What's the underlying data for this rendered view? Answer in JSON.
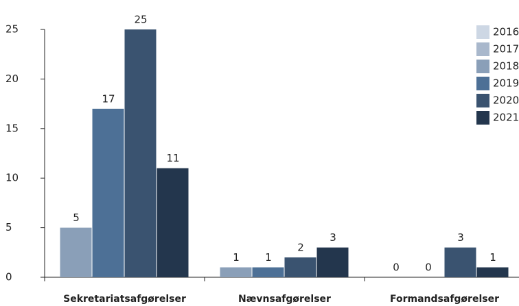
{
  "chart_data": {
    "type": "bar",
    "categories": [
      "Sekretariatsafgørelser",
      "Nævnsafgørelser",
      "Formandsafgørelser"
    ],
    "series": [
      {
        "name": "2016",
        "color": "#cdd7e4",
        "values": [
          null,
          null,
          null
        ]
      },
      {
        "name": "2017",
        "color": "#a9b8cc",
        "values": [
          null,
          null,
          null
        ]
      },
      {
        "name": "2018",
        "color": "#8a9fb8",
        "values": [
          5,
          1,
          0
        ]
      },
      {
        "name": "2019",
        "color": "#4d7096",
        "values": [
          17,
          1,
          0
        ]
      },
      {
        "name": "2020",
        "color": "#3a5370",
        "values": [
          25,
          2,
          3
        ]
      },
      {
        "name": "2021",
        "color": "#23364d",
        "values": [
          11,
          3,
          1
        ]
      }
    ],
    "ylim": [
      0,
      25
    ],
    "yticks": [
      0,
      5,
      10,
      15,
      20,
      25
    ],
    "legend": "top-right"
  }
}
